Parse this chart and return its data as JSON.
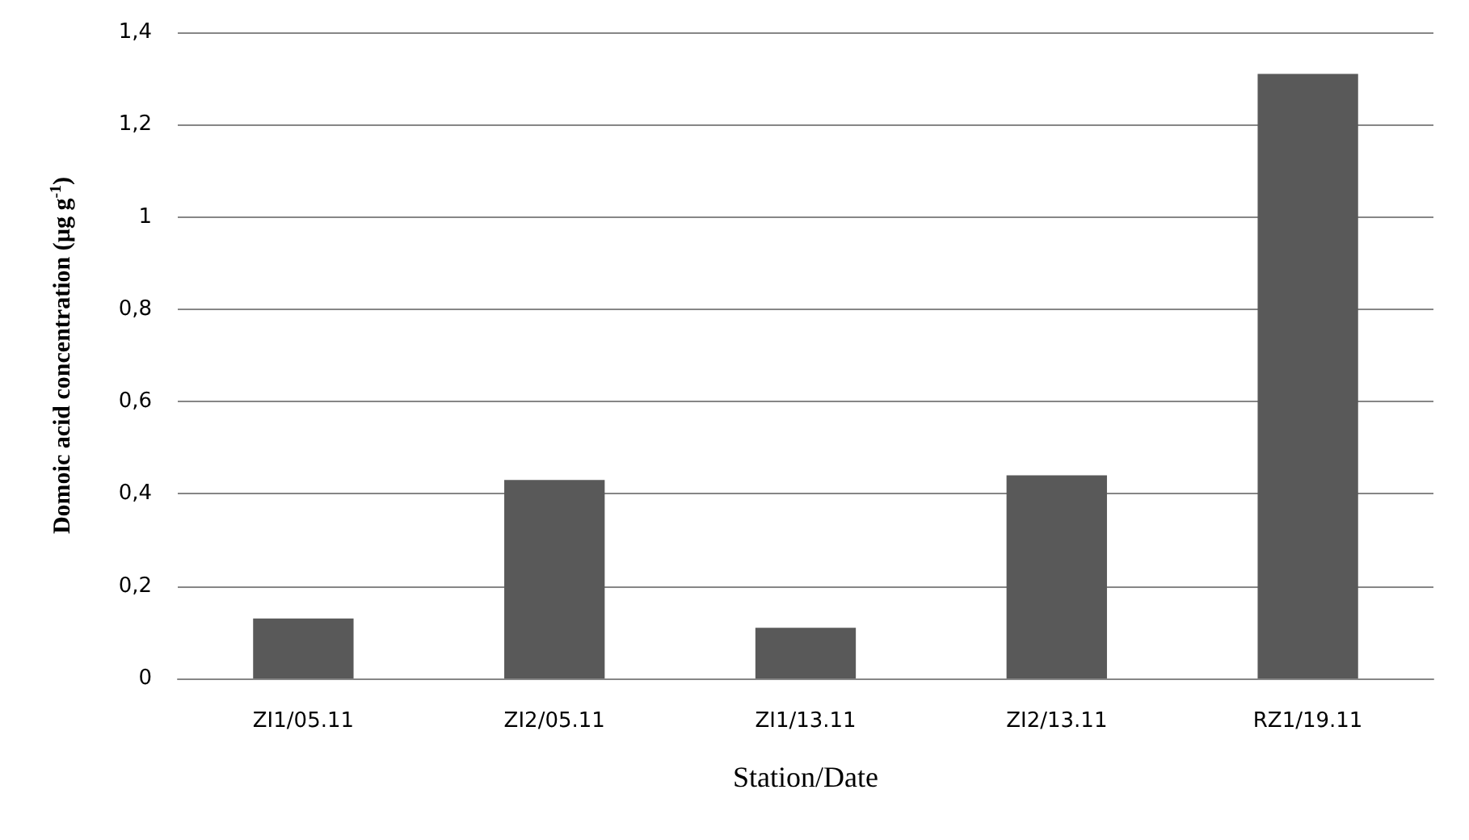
{
  "chart_data": {
    "type": "bar",
    "xlabel": "Station/Date",
    "ylabel": "Domoic acid concentration (µg g$^{-1}$)",
    "categories": [
      "ZI1/05.11",
      "ZI2/05.11",
      "ZI1/13.11",
      "ZI2/13.11",
      "RZ1/19.11"
    ],
    "values": [
      0.13,
      0.43,
      0.11,
      0.44,
      1.31
    ],
    "color": "#595959",
    "ylim": [
      0,
      1.4
    ],
    "yticks": [
      0,
      {
        "value": 0.2,
        "label": "0,2"
      },
      {
        "value": 0.4,
        "label": "0,4"
      },
      {
        "value": 0.6,
        "label": "0,6"
      },
      {
        "value": 0.8,
        "label": "0,8"
      },
      1,
      {
        "value": 1.2,
        "label": "1,2"
      },
      {
        "value": 1.4,
        "label": "1,4"
      }
    ],
    "grid": "y"
  }
}
